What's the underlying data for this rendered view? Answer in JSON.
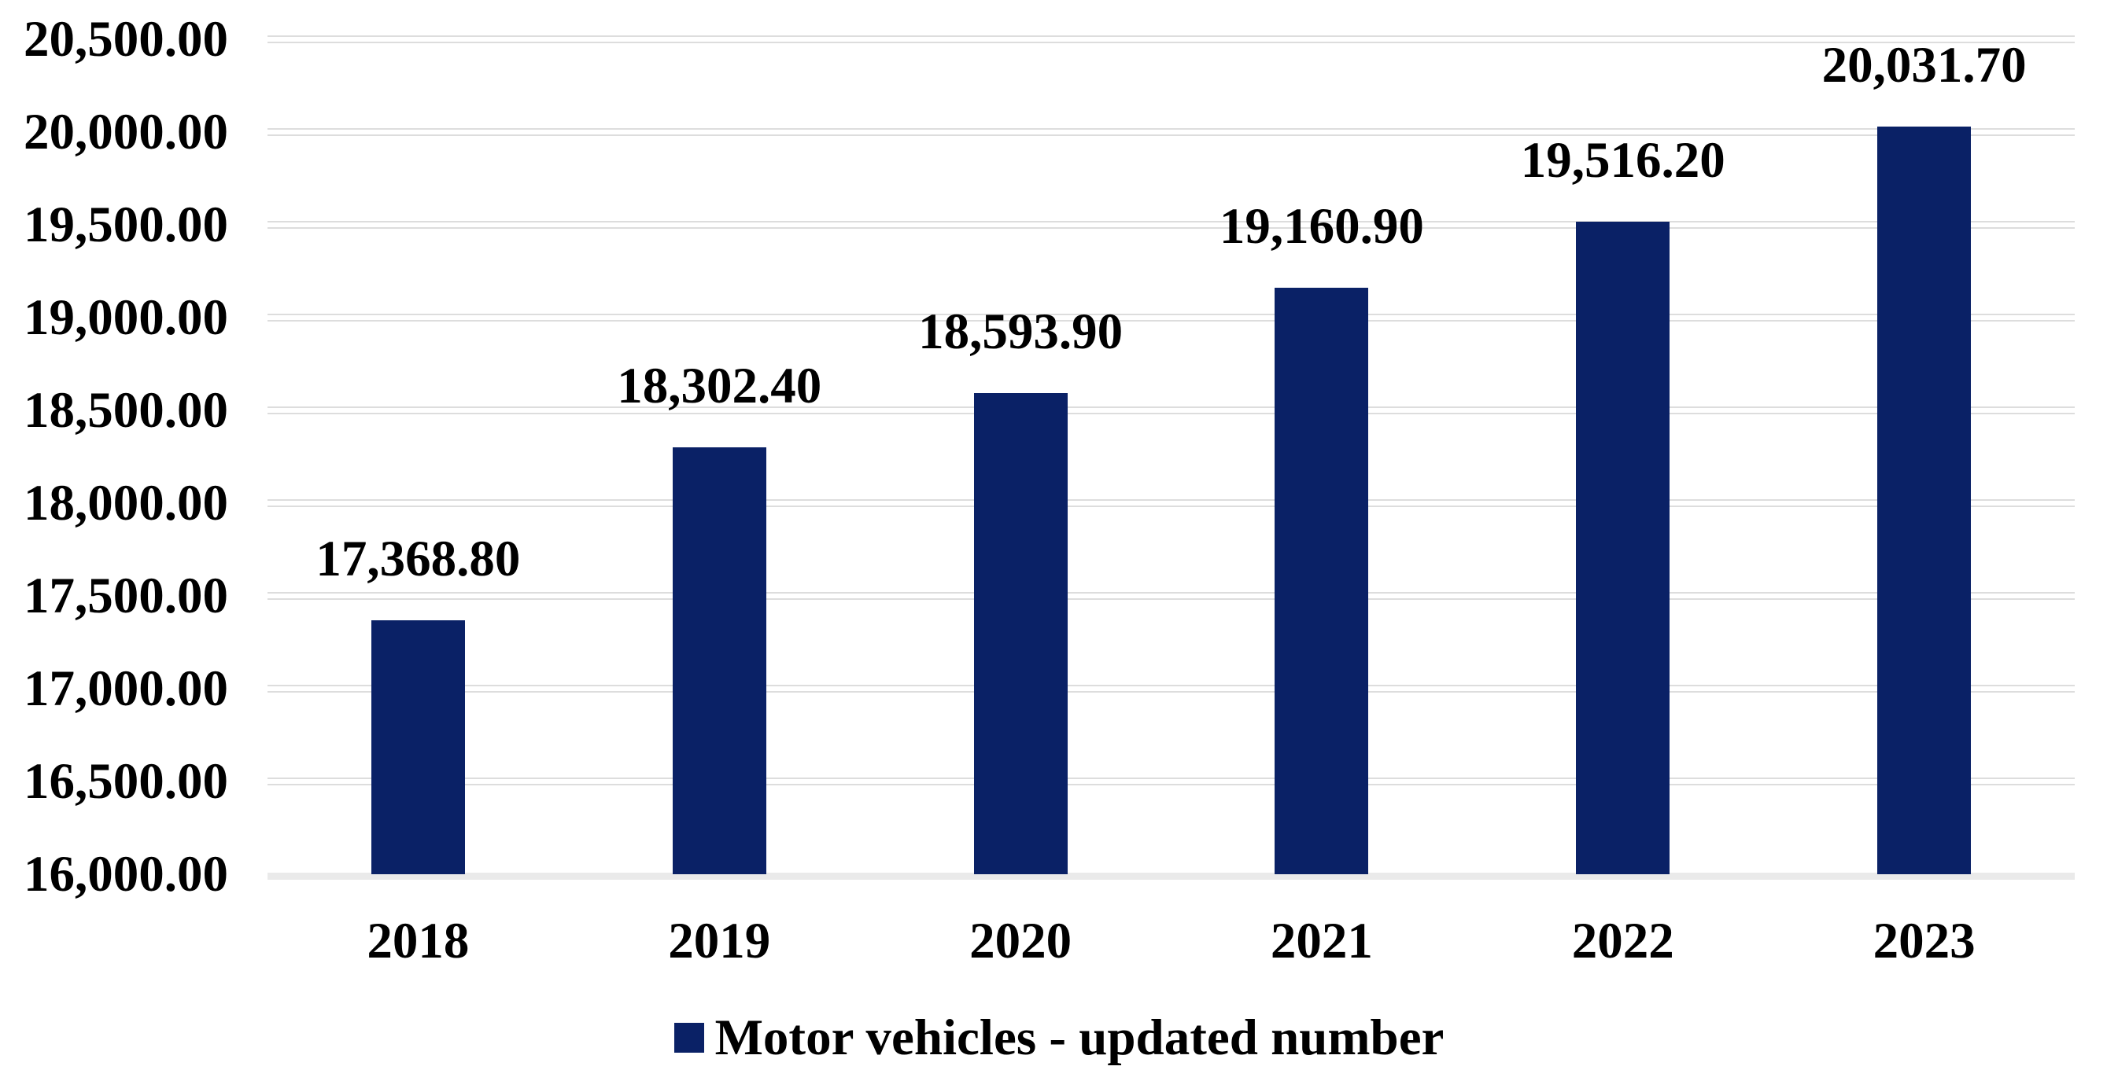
{
  "colors": {
    "bar": "#0A2166",
    "gridline": "#DDDDDD",
    "axis_baseline": "#EAEAEA",
    "text": "#000000",
    "background": "#FFFFFF"
  },
  "legend": {
    "label": "Motor vehicles - updated number"
  },
  "chart_data": {
    "type": "bar",
    "title": "",
    "xlabel": "",
    "ylabel": "",
    "categories": [
      "2018",
      "2019",
      "2020",
      "2021",
      "2022",
      "2023"
    ],
    "series": [
      {
        "name": "Motor vehicles - updated number",
        "values": [
          17368.8,
          18302.4,
          18593.9,
          19160.9,
          19516.2,
          20031.7
        ]
      }
    ],
    "data_labels": [
      "17,368.80",
      "18,302.40",
      "18,593.90",
      "19,160.90",
      "19,516.20",
      "20,031.70"
    ],
    "ytick_labels": [
      "20,500.00",
      "20,000.00",
      "19,500.00",
      "19,000.00",
      "18,500.00",
      "18,000.00",
      "17,500.00",
      "17,000.00",
      "16,500.00",
      "16,000.00"
    ],
    "ylim": [
      16000,
      20500
    ],
    "ytick_step": 500,
    "grid": true,
    "legend_position": "bottom",
    "bar_color": "#0A2166"
  }
}
